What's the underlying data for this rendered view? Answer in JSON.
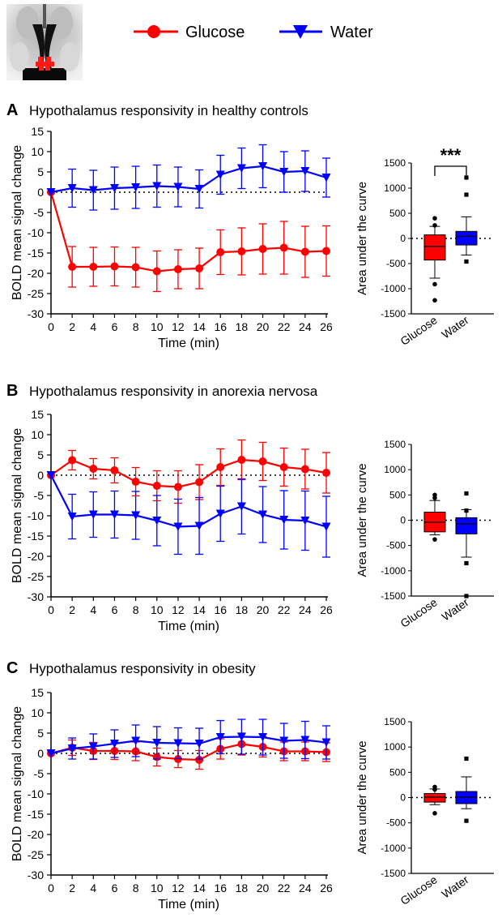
{
  "legend": {
    "items": [
      {
        "label": "Glucose",
        "color": "#ff0000",
        "marker": "circle"
      },
      {
        "label": "Water",
        "color": "#0000ff",
        "marker": "triangle-down"
      }
    ]
  },
  "panels": [
    {
      "letter": "A",
      "title": "Hypothalamus responsivity in healthy controls",
      "significance": "***"
    },
    {
      "letter": "B",
      "title": "Hypothalamus responsivity in anorexia nervosa",
      "significance": ""
    },
    {
      "letter": "C",
      "title": "Hypothalamus responsivity in obesity",
      "significance": ""
    }
  ],
  "chart_data": [
    {
      "panel": "A",
      "type": "line",
      "title": "Hypothalamus responsivity in healthy controls",
      "xlabel": "Time (min)",
      "ylabel": "BOLD mean signal change",
      "x": [
        0,
        2,
        4,
        6,
        8,
        10,
        12,
        14,
        16,
        18,
        20,
        22,
        24,
        26
      ],
      "xticks": [
        0,
        2,
        4,
        6,
        8,
        10,
        12,
        14,
        16,
        18,
        20,
        22,
        24,
        26
      ],
      "ylim": [
        -30,
        15
      ],
      "yticks": [
        15,
        10,
        5,
        0,
        -5,
        -10,
        -15,
        -20,
        -25,
        -30
      ],
      "reference_line": 0,
      "legend": "top",
      "series": [
        {
          "name": "Glucose",
          "color": "#ff0000",
          "marker": "circle",
          "values": [
            0,
            -18.4,
            -18.4,
            -18.3,
            -18.5,
            -19.5,
            -19,
            -18.8,
            -14.8,
            -14.6,
            -14,
            -13.7,
            -14.7,
            -14.5
          ],
          "error": [
            0,
            5,
            4.8,
            4.8,
            4.9,
            5,
            4.8,
            5,
            5.5,
            5.8,
            6.2,
            6.5,
            6.3,
            6.2
          ]
        },
        {
          "name": "Water",
          "color": "#0000ff",
          "marker": "triangle-down",
          "values": [
            0,
            1,
            0.5,
            1,
            1.2,
            1.5,
            1.3,
            0.8,
            4.3,
            5.9,
            6.4,
            5,
            5.2,
            3.6
          ],
          "error": [
            0,
            4.7,
            4.9,
            5.2,
            5.2,
            5.2,
            4.9,
            4.7,
            4.8,
            5,
            5.3,
            5,
            5,
            4.8
          ]
        }
      ]
    },
    {
      "panel": "A",
      "type": "box",
      "ylabel": "Area under the curve",
      "categories": [
        "Glucose",
        "Water"
      ],
      "ylim": [
        -1500,
        1500
      ],
      "yticks": [
        1500,
        1000,
        500,
        0,
        -500,
        -1000,
        -1500
      ],
      "reference_line": 0,
      "significance": "***",
      "boxes": [
        {
          "name": "Glucose",
          "color": "#ff0000",
          "whisker_high": 240,
          "q3": 70,
          "median": -160,
          "q1": -430,
          "whisker_low": -790,
          "outliers": [
            400,
            260,
            -910,
            -1230
          ]
        },
        {
          "name": "Water",
          "color": "#0000ff",
          "whisker_high": 430,
          "q3": 140,
          "median": 40,
          "q1": -130,
          "whisker_low": -330,
          "outliers": [
            1210,
            870,
            -460
          ]
        }
      ]
    },
    {
      "panel": "B",
      "type": "line",
      "title": "Hypothalamus responsivity in anorexia nervosa",
      "xlabel": "Time (min)",
      "ylabel": "BOLD mean signal change",
      "x": [
        0,
        2,
        4,
        6,
        8,
        10,
        12,
        14,
        16,
        18,
        20,
        22,
        24,
        26
      ],
      "xticks": [
        0,
        2,
        4,
        6,
        8,
        10,
        12,
        14,
        16,
        18,
        20,
        22,
        24,
        26
      ],
      "ylim": [
        -30,
        15
      ],
      "yticks": [
        15,
        10,
        5,
        0,
        -5,
        -10,
        -15,
        -20,
        -25,
        -30
      ],
      "reference_line": 0,
      "series": [
        {
          "name": "Glucose",
          "color": "#ff0000",
          "marker": "circle",
          "values": [
            0,
            3.7,
            1.6,
            1.2,
            -1.6,
            -2.6,
            -2.9,
            -1.7,
            2,
            3.8,
            3.4,
            2,
            1.5,
            0.6
          ],
          "error": [
            0,
            2.4,
            2.5,
            3.1,
            3.5,
            3.7,
            4,
            4.3,
            4.5,
            4.9,
            4.7,
            4.7,
            4.9,
            5
          ]
        },
        {
          "name": "Water",
          "color": "#0000ff",
          "marker": "triangle-down",
          "values": [
            0,
            -10.2,
            -9.7,
            -9.7,
            -9.9,
            -11.2,
            -12.7,
            -12.5,
            -9.5,
            -7.7,
            -9.7,
            -11,
            -11.2,
            -12.7
          ],
          "error": [
            0,
            5.5,
            5.6,
            5.8,
            5.9,
            6.2,
            6.8,
            7,
            6.8,
            6.8,
            6.9,
            7.2,
            7.3,
            7.5
          ]
        }
      ]
    },
    {
      "panel": "B",
      "type": "box",
      "ylabel": "Area under the curve",
      "categories": [
        "Glucose",
        "Water"
      ],
      "ylim": [
        -1500,
        1500
      ],
      "yticks": [
        1500,
        1000,
        500,
        0,
        -500,
        -1000,
        -1500
      ],
      "reference_line": 0,
      "boxes": [
        {
          "name": "Glucose",
          "color": "#ff0000",
          "whisker_high": 390,
          "q3": 160,
          "median": -40,
          "q1": -230,
          "whisker_low": -290,
          "outliers": [
            500,
            440,
            -380
          ]
        },
        {
          "name": "Water",
          "color": "#0000ff",
          "whisker_high": 210,
          "q3": 50,
          "median": -70,
          "q1": -270,
          "whisker_low": -730,
          "outliers": [
            530,
            190,
            -850,
            -1500
          ]
        }
      ]
    },
    {
      "panel": "C",
      "type": "line",
      "title": "Hypothalamus responsivity in obesity",
      "xlabel": "Time (min)",
      "ylabel": "BOLD mean signal change",
      "x": [
        0,
        2,
        4,
        6,
        8,
        10,
        12,
        14,
        16,
        18,
        20,
        22,
        24,
        26
      ],
      "xticks": [
        0,
        2,
        4,
        6,
        8,
        10,
        12,
        14,
        16,
        18,
        20,
        22,
        24,
        26
      ],
      "ylim": [
        -30,
        15
      ],
      "yticks": [
        15,
        10,
        5,
        0,
        -5,
        -10,
        -15,
        -20,
        -25,
        -30
      ],
      "reference_line": 0,
      "series": [
        {
          "name": "Glucose",
          "color": "#ff0000",
          "marker": "circle",
          "values": [
            0,
            1.4,
            0.6,
            0.6,
            0.5,
            -0.9,
            -1.4,
            -1.6,
            1.1,
            2.3,
            1.6,
            0.5,
            0.5,
            0.3
          ],
          "error": [
            0,
            1.9,
            2.1,
            2.1,
            2.3,
            2.2,
            2.1,
            2.3,
            2.5,
            2.7,
            2.5,
            2.3,
            2.3,
            2.3
          ]
        },
        {
          "name": "Water",
          "color": "#0000ff",
          "marker": "triangle-down",
          "values": [
            0,
            1.2,
            1.7,
            2.4,
            3.1,
            2.6,
            2.5,
            2.4,
            4,
            4.1,
            4,
            3.1,
            3.3,
            2.7
          ],
          "error": [
            0,
            2.6,
            3.1,
            3.4,
            3.9,
            4,
            3.8,
            3.8,
            4.1,
            4.3,
            4.4,
            4.3,
            4.6,
            4.1
          ]
        }
      ]
    },
    {
      "panel": "C",
      "type": "box",
      "ylabel": "Area under the curve",
      "categories": [
        "Glucose",
        "Water"
      ],
      "ylim": [
        -1500,
        1500
      ],
      "yticks": [
        1500,
        1000,
        500,
        0,
        -500,
        -1000,
        -1500
      ],
      "reference_line": 0,
      "boxes": [
        {
          "name": "Glucose",
          "color": "#ff0000",
          "whisker_high": 170,
          "q3": 80,
          "median": 10,
          "q1": -90,
          "whisker_low": -140,
          "outliers": [
            210,
            160,
            -310
          ]
        },
        {
          "name": "Water",
          "color": "#0000ff",
          "whisker_high": 410,
          "q3": 120,
          "median": 10,
          "q1": -120,
          "whisker_low": -220,
          "outliers": [
            770,
            -460
          ]
        }
      ]
    }
  ]
}
